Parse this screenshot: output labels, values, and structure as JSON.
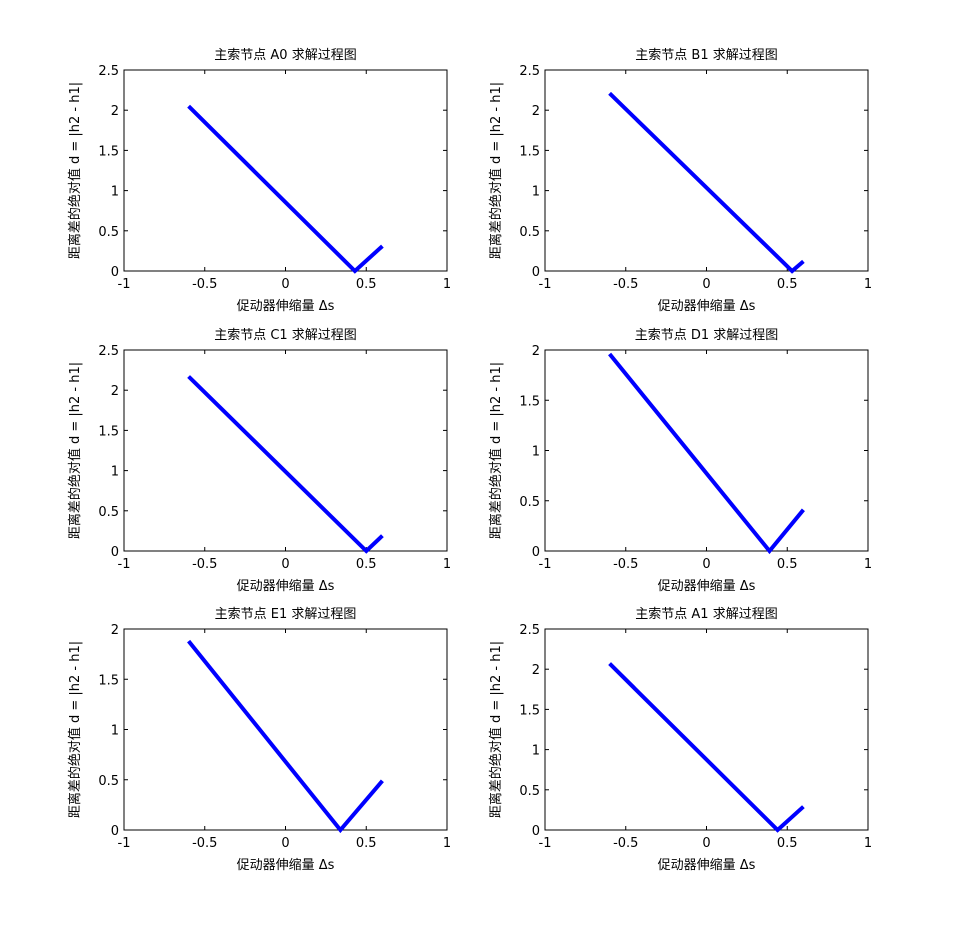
{
  "figure": {
    "background": "#ffffff",
    "line_color": "#0000ff"
  },
  "chart_data": [
    {
      "type": "line",
      "title": "主索节点 A0 求解过程图",
      "xlabel": "促动器伸缩量 Δs",
      "ylabel": "距离差的绝对值 d = |h2 - h1|",
      "xlim": [
        -1,
        1
      ],
      "ylim": [
        0,
        2.5
      ],
      "xticks": [
        -1,
        -0.5,
        0,
        0.5,
        1
      ],
      "xtick_labels": [
        "-1",
        "-0.5",
        "0",
        "0.5",
        "1"
      ],
      "yticks": [
        0,
        0.5,
        1,
        1.5,
        2,
        2.5
      ],
      "ytick_labels": [
        "0",
        "0.5",
        "1",
        "1.5",
        "2",
        "2.5"
      ],
      "grid": false,
      "series": [
        {
          "x": [
            -0.6,
            0.43,
            0.6
          ],
          "y": [
            2.05,
            0,
            0.31
          ]
        }
      ]
    },
    {
      "type": "line",
      "title": "主索节点 B1 求解过程图",
      "xlabel": "促动器伸缩量 Δs",
      "ylabel": "距离差的绝对值 d = |h2 - h1|",
      "xlim": [
        -1,
        1
      ],
      "ylim": [
        0,
        2.5
      ],
      "xticks": [
        -1,
        -0.5,
        0,
        0.5,
        1
      ],
      "xtick_labels": [
        "-1",
        "-0.5",
        "0",
        "0.5",
        "1"
      ],
      "yticks": [
        0,
        0.5,
        1,
        1.5,
        2,
        2.5
      ],
      "ytick_labels": [
        "0",
        "0.5",
        "1",
        "1.5",
        "2",
        "2.5"
      ],
      "grid": false,
      "series": [
        {
          "x": [
            -0.6,
            0.53,
            0.6
          ],
          "y": [
            2.21,
            0,
            0.12
          ]
        }
      ]
    },
    {
      "type": "line",
      "title": "主索节点 C1 求解过程图",
      "xlabel": "促动器伸缩量 Δs",
      "ylabel": "距离差的绝对值 d = |h2 - h1|",
      "xlim": [
        -1,
        1
      ],
      "ylim": [
        0,
        2.5
      ],
      "xticks": [
        -1,
        -0.5,
        0,
        0.5,
        1
      ],
      "xtick_labels": [
        "-1",
        "-0.5",
        "0",
        "0.5",
        "1"
      ],
      "yticks": [
        0,
        0.5,
        1,
        1.5,
        2,
        2.5
      ],
      "ytick_labels": [
        "0",
        "0.5",
        "1",
        "1.5",
        "2",
        "2.5"
      ],
      "grid": false,
      "series": [
        {
          "x": [
            -0.6,
            0.5,
            0.6
          ],
          "y": [
            2.17,
            0,
            0.19
          ]
        }
      ]
    },
    {
      "type": "line",
      "title": "主索节点 D1 求解过程图",
      "xlabel": "促动器伸缩量 Δs",
      "ylabel": "距离差的绝对值 d = |h2 - h1|",
      "xlim": [
        -1,
        1
      ],
      "ylim": [
        0,
        2
      ],
      "xticks": [
        -1,
        -0.5,
        0,
        0.5,
        1
      ],
      "xtick_labels": [
        "-1",
        "-0.5",
        "0",
        "0.5",
        "1"
      ],
      "yticks": [
        0,
        0.5,
        1,
        1.5,
        2
      ],
      "ytick_labels": [
        "0",
        "0.5",
        "1",
        "1.5",
        "2"
      ],
      "grid": false,
      "series": [
        {
          "x": [
            -0.6,
            0.39,
            0.6
          ],
          "y": [
            1.96,
            0,
            0.41
          ]
        }
      ]
    },
    {
      "type": "line",
      "title": "主索节点 E1 求解过程图",
      "xlabel": "促动器伸缩量 Δs",
      "ylabel": "距离差的绝对值 d = |h2 - h1|",
      "xlim": [
        -1,
        1
      ],
      "ylim": [
        0,
        2
      ],
      "xticks": [
        -1,
        -0.5,
        0,
        0.5,
        1
      ],
      "xtick_labels": [
        "-1",
        "-0.5",
        "0",
        "0.5",
        "1"
      ],
      "yticks": [
        0,
        0.5,
        1,
        1.5,
        2
      ],
      "ytick_labels": [
        "0",
        "0.5",
        "1",
        "1.5",
        "2"
      ],
      "grid": false,
      "series": [
        {
          "x": [
            -0.6,
            0.34,
            0.6
          ],
          "y": [
            1.88,
            0,
            0.49
          ]
        }
      ]
    },
    {
      "type": "line",
      "title": "主索节点 A1 求解过程图",
      "xlabel": "促动器伸缩量 Δs",
      "ylabel": "距离差的绝对值 d = |h2 - h1|",
      "xlim": [
        -1,
        1
      ],
      "ylim": [
        0,
        2.5
      ],
      "xticks": [
        -1,
        -0.5,
        0,
        0.5,
        1
      ],
      "xtick_labels": [
        "-1",
        "-0.5",
        "0",
        "0.5",
        "1"
      ],
      "yticks": [
        0,
        0.5,
        1,
        1.5,
        2,
        2.5
      ],
      "ytick_labels": [
        "0",
        "0.5",
        "1",
        "1.5",
        "2",
        "2.5"
      ],
      "grid": false,
      "series": [
        {
          "x": [
            -0.6,
            0.44,
            0.6
          ],
          "y": [
            2.07,
            0,
            0.29
          ]
        }
      ]
    }
  ]
}
